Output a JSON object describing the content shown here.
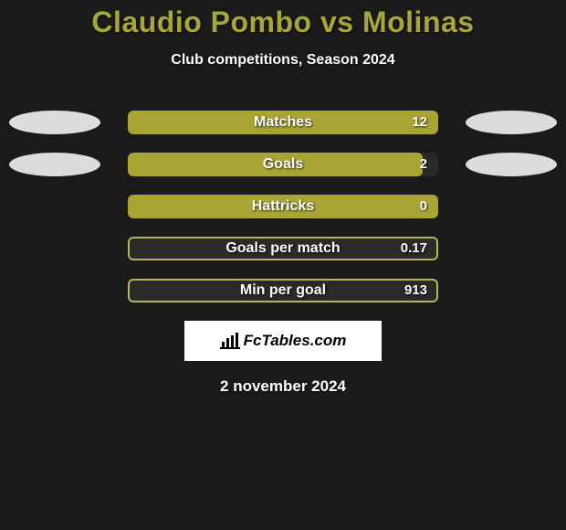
{
  "title_color": "#a8a53a",
  "title": "Claudio Pombo vs Molinas",
  "subtitle": "Club competitions, Season 2024",
  "date": "2 november 2024",
  "logo_text": "FcTables.com",
  "bar": {
    "background": "#1a1a1a",
    "fill_color": "#a8a534",
    "border_color": "#b9b650",
    "outline_fill_bg": "#2a2a2a"
  },
  "stats": [
    {
      "label": "Matches",
      "value": "12",
      "fill_pct": 100,
      "show_ellipses": true,
      "outline_only": false
    },
    {
      "label": "Goals",
      "value": "2",
      "fill_pct": 95,
      "show_ellipses": true,
      "outline_only": false
    },
    {
      "label": "Hattricks",
      "value": "0",
      "fill_pct": 100,
      "show_ellipses": false,
      "outline_only": false
    },
    {
      "label": "Goals per match",
      "value": "0.17",
      "fill_pct": 100,
      "show_ellipses": false,
      "outline_only": true
    },
    {
      "label": "Min per goal",
      "value": "913",
      "fill_pct": 100,
      "show_ellipses": false,
      "outline_only": true
    }
  ]
}
